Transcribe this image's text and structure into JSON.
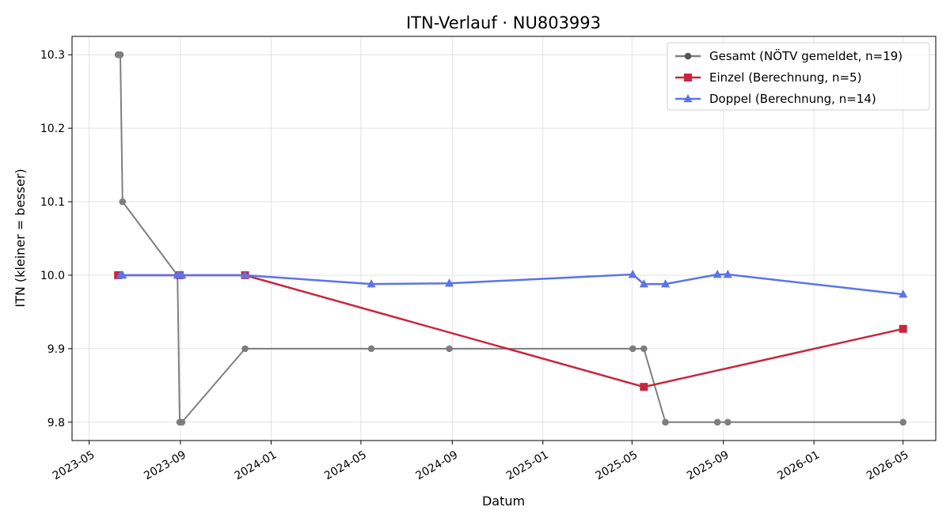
{
  "chart_data": {
    "type": "line",
    "title": "ITN-Verlauf · NU803993",
    "xlabel": "Datum",
    "ylabel": "ITN  (kleiner = besser)",
    "x_is_date": true,
    "xlim": [
      "2023-04-08",
      "2026-06-14"
    ],
    "ylim": [
      9.775,
      10.325
    ],
    "x_ticks": [
      {
        "date": "2023-05-01",
        "label": "2023-05"
      },
      {
        "date": "2023-09-01",
        "label": "2023-09"
      },
      {
        "date": "2024-01-01",
        "label": "2024-01"
      },
      {
        "date": "2024-05-01",
        "label": "2024-05"
      },
      {
        "date": "2024-09-01",
        "label": "2024-09"
      },
      {
        "date": "2025-01-01",
        "label": "2025-01"
      },
      {
        "date": "2025-05-01",
        "label": "2025-05"
      },
      {
        "date": "2025-09-01",
        "label": "2025-09"
      },
      {
        "date": "2026-01-01",
        "label": "2026-01"
      },
      {
        "date": "2026-05-01",
        "label": "2026-05"
      }
    ],
    "y_ticks": [
      {
        "value": 9.8,
        "label": "9.8"
      },
      {
        "value": 9.9,
        "label": "9.9"
      },
      {
        "value": 10.0,
        "label": "10.0"
      },
      {
        "value": 10.1,
        "label": "10.1"
      },
      {
        "value": 10.2,
        "label": "10.2"
      },
      {
        "value": 10.3,
        "label": "10.3"
      }
    ],
    "grid": true,
    "legend_position": "top-right",
    "series": [
      {
        "name": "Gesamt (NÖTV gemeldet, n=19)",
        "color": "#555555",
        "marker": "circle",
        "points": [
          {
            "x": "2023-06-09",
            "y": 10.3
          },
          {
            "x": "2023-06-12",
            "y": 10.3
          },
          {
            "x": "2023-06-15",
            "y": 10.1
          },
          {
            "x": "2023-08-28",
            "y": 10.0
          },
          {
            "x": "2023-08-31",
            "y": 9.8
          },
          {
            "x": "2023-09-03",
            "y": 9.8
          },
          {
            "x": "2023-11-27",
            "y": 9.9
          },
          {
            "x": "2024-05-15",
            "y": 9.9
          },
          {
            "x": "2024-08-28",
            "y": 9.9
          },
          {
            "x": "2025-05-02",
            "y": 9.9
          },
          {
            "x": "2025-05-17",
            "y": 9.9
          },
          {
            "x": "2025-06-15",
            "y": 9.8
          },
          {
            "x": "2025-08-24",
            "y": 9.8
          },
          {
            "x": "2025-09-07",
            "y": 9.8
          },
          {
            "x": "2026-05-01",
            "y": 9.8
          }
        ]
      },
      {
        "name": "Einzel (Berechnung, n=5)",
        "color": "#c8253f",
        "marker": "square",
        "points": [
          {
            "x": "2023-06-09",
            "y": 10.0
          },
          {
            "x": "2023-08-31",
            "y": 10.0
          },
          {
            "x": "2023-11-27",
            "y": 10.0
          },
          {
            "x": "2025-05-17",
            "y": 9.848
          },
          {
            "x": "2026-05-01",
            "y": 9.927
          }
        ]
      },
      {
        "name": "Doppel (Berechnung, n=14)",
        "color": "#5b74e8",
        "marker": "triangle",
        "points": [
          {
            "x": "2023-06-12",
            "y": 10.0
          },
          {
            "x": "2023-06-15",
            "y": 10.0
          },
          {
            "x": "2023-08-28",
            "y": 10.0
          },
          {
            "x": "2023-08-31",
            "y": 10.0
          },
          {
            "x": "2023-09-03",
            "y": 10.0
          },
          {
            "x": "2023-11-27",
            "y": 10.0
          },
          {
            "x": "2024-05-15",
            "y": 9.988
          },
          {
            "x": "2024-08-28",
            "y": 9.989
          },
          {
            "x": "2025-05-02",
            "y": 10.001
          },
          {
            "x": "2025-05-17",
            "y": 9.988
          },
          {
            "x": "2025-06-15",
            "y": 9.988
          },
          {
            "x": "2025-08-24",
            "y": 10.001
          },
          {
            "x": "2025-09-07",
            "y": 10.001
          },
          {
            "x": "2026-05-01",
            "y": 9.974
          }
        ]
      }
    ]
  }
}
